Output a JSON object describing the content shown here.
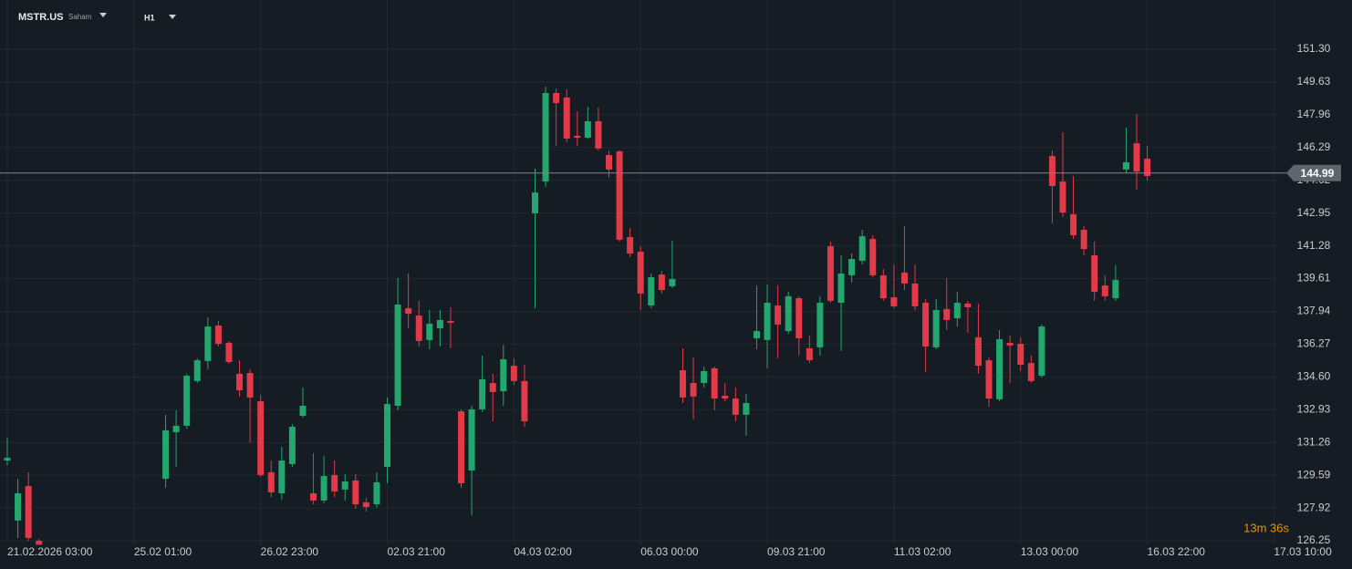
{
  "chart_data": {
    "type": "candlestick",
    "symbol": "MSTR.US",
    "asset_class": "Saham",
    "timeframe": "H1",
    "countdown": "13m 36s",
    "last_price": 144.99,
    "up_color": "#22a86e",
    "down_color": "#e23a48",
    "grid": true,
    "categories": [
      "21.02.2026 03:00",
      null,
      null,
      null,
      null,
      null,
      null,
      null,
      null,
      null,
      null,
      null,
      "25.02 01:00",
      null,
      null,
      null,
      null,
      null,
      null,
      null,
      null,
      null,
      null,
      null,
      "26.02 23:00",
      null,
      null,
      null,
      null,
      null,
      null,
      null,
      null,
      null,
      null,
      null,
      "02.03 21:00",
      null,
      null,
      null,
      null,
      null,
      null,
      null,
      null,
      null,
      null,
      null,
      "04.03 02:00",
      null,
      null,
      null,
      null,
      null,
      null,
      null,
      null,
      null,
      null,
      null,
      "06.03 00:00",
      null,
      null,
      null,
      null,
      null,
      null,
      null,
      null,
      null,
      null,
      null,
      "09.03 21:00",
      null,
      null,
      null,
      null,
      null,
      null,
      null,
      null,
      null,
      null,
      null,
      "11.03 02:00",
      null,
      null,
      null,
      null,
      null,
      null,
      null,
      null,
      null,
      null,
      null,
      "13.03 00:00",
      null,
      null,
      null,
      null,
      null,
      null,
      null,
      null,
      null,
      null,
      null,
      "16.03 22:00",
      null,
      null,
      null,
      null,
      null,
      null,
      null,
      null,
      null,
      null,
      null,
      "17.03 10:00"
    ],
    "open": [
      130.34,
      127.28,
      129.04,
      126.25,
      null,
      null,
      null,
      null,
      null,
      null,
      null,
      null,
      null,
      null,
      null,
      129.41,
      131.78,
      132.11,
      134.39,
      135.41,
      137.22,
      136.34,
      134.76,
      134.8,
      133.36,
      129.74,
      128.67,
      130.16,
      132.62,
      128.67,
      128.3,
      129.6,
      128.86,
      129.32,
      128.21,
      128.11,
      130.02,
      133.13,
      138.1,
      137.73,
      136.48,
      137.08,
      137.45,
      132.85,
      129.83,
      132.95,
      134.29,
      133.87,
      135.17,
      134.39,
      142.94,
      144.56,
      149.07,
      148.84,
      146.89,
      146.79,
      147.63,
      145.91,
      146.1,
      141.73,
      140.98,
      138.24,
      139.82,
      139.22,
      134.94,
      134.29,
      134.29,
      135.04,
      133.64,
      133.5,
      132.67,
      136.57,
      136.48,
      138.24,
      136.94,
      138.61,
      136.06,
      136.11,
      141.26,
      138.38,
      139.78,
      140.52,
      141.63,
      139.78,
      138.66,
      139.92,
      139.36,
      138.38,
      136.11,
      138.06,
      137.59,
      138.34,
      136.62,
      135.45,
      133.46,
      136.34,
      136.29,
      135.31,
      134.66,
      145.86,
      144.56,
      142.89,
      142.1,
      140.8,
      139.26,
      138.61,
      145.17,
      146.51,
      145.72,
      null,
      null,
      null,
      null,
      null,
      null,
      null,
      null,
      null,
      null,
      null,
      null
    ],
    "high": [
      131.5,
      129.41,
      129.74,
      126.34,
      null,
      null,
      null,
      null,
      null,
      null,
      null,
      null,
      null,
      null,
      null,
      132.67,
      132.9,
      134.76,
      135.55,
      137.64,
      137.45,
      136.43,
      135.45,
      134.99,
      133.69,
      130.34,
      131.04,
      132.2,
      134.06,
      130.71,
      130.58,
      130.34,
      129.65,
      129.65,
      128.44,
      129.74,
      133.55,
      139.64,
      139.87,
      138.48,
      138.01,
      138.01,
      138.15,
      132.95,
      133.13,
      135.69,
      134.76,
      136.24,
      135.55,
      135.22,
      145.21,
      149.4,
      149.3,
      149.26,
      148.14,
      148.37,
      148.33,
      146.14,
      146.14,
      142.19,
      141.26,
      139.87,
      140.01,
      141.54,
      136.06,
      135.59,
      135.13,
      135.13,
      134.29,
      134.06,
      133.73,
      139.26,
      139.31,
      139.26,
      138.94,
      138.71,
      136.71,
      138.71,
      141.5,
      140.8,
      140.89,
      142.1,
      141.82,
      140.1,
      140.33,
      142.29,
      140.33,
      138.57,
      138.57,
      139.64,
      138.94,
      138.48,
      138.34,
      135.59,
      136.99,
      136.71,
      136.62,
      135.69,
      137.27,
      146.14,
      147.07,
      144.84,
      142.29,
      141.5,
      139.78,
      140.29,
      147.3,
      148.0,
      146.37,
      null,
      null,
      null,
      null,
      null,
      null,
      null,
      null,
      null,
      null,
      null,
      null
    ],
    "low": [
      130.11,
      126.39,
      126.25,
      126.05,
      null,
      null,
      null,
      null,
      null,
      null,
      null,
      null,
      null,
      null,
      null,
      128.95,
      130.02,
      131.97,
      134.29,
      134.99,
      136.15,
      135.27,
      133.6,
      131.27,
      129.51,
      128.48,
      128.35,
      130.02,
      132.53,
      128.11,
      128.16,
      128.48,
      128.3,
      127.88,
      127.74,
      127.93,
      129.18,
      132.9,
      137.08,
      136.15,
      136.01,
      136.15,
      136.06,
      128.95,
      127.55,
      132.81,
      132.34,
      133.13,
      134.2,
      132.06,
      138.1,
      144.28,
      146.37,
      146.56,
      146.37,
      146.75,
      146.14,
      144.75,
      141.5,
      140.71,
      138.01,
      138.1,
      138.85,
      139.13,
      133.27,
      132.43,
      134.06,
      132.9,
      133.36,
      132.34,
      131.6,
      136.01,
      135.04,
      135.55,
      136.8,
      135.69,
      135.31,
      135.69,
      138.38,
      135.92,
      139.4,
      140.33,
      139.68,
      138.48,
      138.1,
      139.03,
      138.01,
      134.85,
      136.01,
      136.99,
      137.17,
      136.85,
      134.76,
      133.08,
      133.36,
      134.29,
      134.9,
      134.29,
      134.57,
      142.43,
      142.75,
      141.63,
      140.8,
      138.48,
      138.48,
      138.48,
      144.98,
      144.14,
      144.61,
      null,
      null,
      null,
      null,
      null,
      null,
      null,
      null,
      null,
      null,
      null,
      null
    ],
    "close": [
      130.48,
      128.67,
      126.39,
      126.05,
      null,
      null,
      null,
      null,
      null,
      null,
      null,
      null,
      null,
      null,
      null,
      131.88,
      132.11,
      134.66,
      135.45,
      137.17,
      136.29,
      135.36,
      133.92,
      133.55,
      129.6,
      128.72,
      130.34,
      132.06,
      133.13,
      128.3,
      129.55,
      128.76,
      129.27,
      128.11,
      127.97,
      129.23,
      133.22,
      138.29,
      137.82,
      136.43,
      137.31,
      137.5,
      137.36,
      129.18,
      132.95,
      134.48,
      133.83,
      135.5,
      134.39,
      132.34,
      144.0,
      149.07,
      148.56,
      146.75,
      146.79,
      147.63,
      146.24,
      145.17,
      141.59,
      140.89,
      138.85,
      139.68,
      139.03,
      139.59,
      133.55,
      133.6,
      134.9,
      133.5,
      133.5,
      132.67,
      133.27,
      136.94,
      138.38,
      137.27,
      138.71,
      136.57,
      135.45,
      138.38,
      138.48,
      139.87,
      140.61,
      141.77,
      139.78,
      138.61,
      138.2,
      139.36,
      138.2,
      136.15,
      138.01,
      137.5,
      138.38,
      138.15,
      135.17,
      133.5,
      136.52,
      136.2,
      135.22,
      134.39,
      137.17,
      144.33,
      142.98,
      141.82,
      141.12,
      138.94,
      138.71,
      139.54,
      145.54,
      145.07,
      144.84,
      null,
      null,
      null,
      null,
      null,
      null,
      null,
      null,
      null,
      null,
      null,
      null
    ],
    "ylim": [
      126.02,
      153.81
    ],
    "yticks": [
      {
        "value": 151.3,
        "label": "151.30"
      },
      149.63,
      147.96,
      146.29,
      144.62,
      142.95,
      141.28,
      139.61,
      137.94,
      136.27,
      {
        "value": 134.6,
        "label": "134.60"
      },
      132.93,
      131.26,
      129.59,
      127.92,
      126.25
    ]
  }
}
